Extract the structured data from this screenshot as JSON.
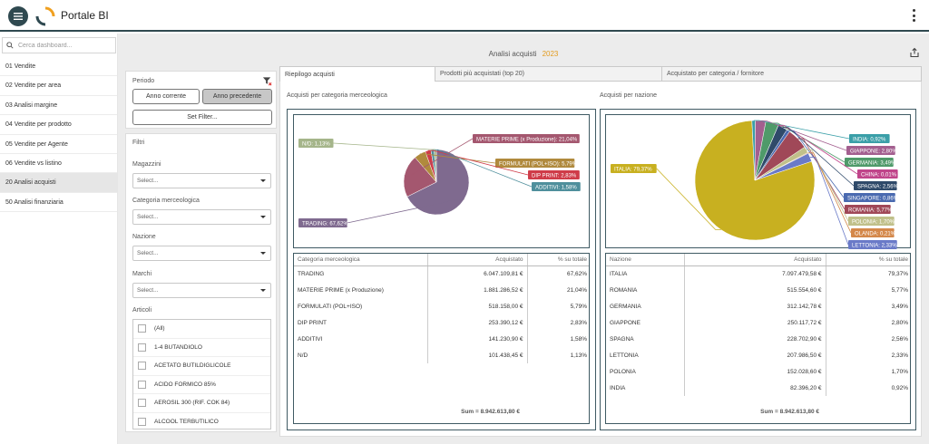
{
  "app": {
    "title": "Portale BI"
  },
  "search": {
    "placeholder": "Cerca dashboard..."
  },
  "sidebar": {
    "items": [
      {
        "label": "01 Vendite"
      },
      {
        "label": "02 Vendite per area"
      },
      {
        "label": "03 Analisi margine"
      },
      {
        "label": "04 Vendite per prodotto"
      },
      {
        "label": "05 Vendite per Agente"
      },
      {
        "label": "06 Vendite vs listino"
      },
      {
        "label": "20 Analisi acquisti",
        "active": true
      },
      {
        "label": "50 Analisi finanziaria"
      }
    ]
  },
  "page": {
    "title": "Analisi acquisti",
    "year": "2023"
  },
  "filters": {
    "period_label": "Periodo",
    "current_year_btn": "Anno corrente",
    "prev_year_btn": "Anno precedente",
    "set_filter_btn": "Set Filter...",
    "filtri_label": "Filtri",
    "magazzini_label": "Magazzini",
    "categoria_label": "Categoria merceologica",
    "nazione_label": "Nazione",
    "marchi_label": "Marchi",
    "articoli_label": "Articoli",
    "select_placeholder": "Select...",
    "articoli": [
      "(All)",
      "1-4 BUTANDIOLO",
      "ACETATO BUTILDIGLICOLE",
      "ACIDO FORMICO 85%",
      "AEROSIL 300 (RIF. COK 84)",
      "ALCOOL TERBUTILICO"
    ]
  },
  "tabs": [
    {
      "label": "Riepilogo acquisti",
      "active": true
    },
    {
      "label": "Prodotti più acquistati (top 20)"
    },
    {
      "label": "Acquistato per categoria / fornitore"
    }
  ],
  "left_section": {
    "title": "Acquisti per categoria merceologica",
    "table": {
      "headers": [
        "Categoria merceologica",
        "Acquistato",
        "% su totale"
      ],
      "rows": [
        [
          "TRADING",
          "6.047.109,81 €",
          "67,62%"
        ],
        [
          "MATERIE PRIME (x Produzione)",
          "1.881.286,52 €",
          "21,04%"
        ],
        [
          "FORMULATI (POL+ISO)",
          "518.158,00 €",
          "5,79%"
        ],
        [
          "DIP PRINT",
          "253.390,12 €",
          "2,83%"
        ],
        [
          "ADDITIVI",
          "141.230,90 €",
          "1,58%"
        ],
        [
          "N/D",
          "101.438,45 €",
          "1,13%"
        ]
      ],
      "sum": "Sum = 8.942.613,80 €"
    }
  },
  "right_section": {
    "title": "Acquisti per nazione",
    "table": {
      "headers": [
        "Nazione",
        "Acquistato",
        "% su totale"
      ],
      "rows": [
        [
          "ITALIA",
          "7.097.479,58 €",
          "79,37%"
        ],
        [
          "ROMANIA",
          "515.554,60 €",
          "5,77%"
        ],
        [
          "GERMANIA",
          "312.142,78 €",
          "3,49%"
        ],
        [
          "GIAPPONE",
          "250.117,72 €",
          "2,80%"
        ],
        [
          "SPAGNA",
          "228.702,90 €",
          "2,56%"
        ],
        [
          "LETTONIA",
          "207.986,50 €",
          "2,33%"
        ],
        [
          "POLONIA",
          "152.028,60 €",
          "1,70%"
        ],
        [
          "INDIA",
          "82.396,20 €",
          "0,92%"
        ]
      ],
      "sum": "Sum = 8.942.613,80 €"
    }
  },
  "chart_data": [
    {
      "type": "pie",
      "title": "Acquisti per categoria merceologica",
      "series": [
        {
          "name": "TRADING",
          "value": 67.62,
          "label": "TRADING: 67,62%",
          "color": "#7f6a8f"
        },
        {
          "name": "MATERIE PRIME (x Produzione)",
          "value": 21.04,
          "label": "MATERIE PRIME (x Produzione): 21,04%",
          "color": "#a4576f"
        },
        {
          "name": "FORMULATI (POL+ISO)",
          "value": 5.79,
          "label": "FORMULATI (POL+ISO): 5,79%",
          "color": "#b08a3d"
        },
        {
          "name": "DIP PRINT",
          "value": 2.83,
          "label": "DIP PRINT: 2,83%",
          "color": "#cf3c49"
        },
        {
          "name": "ADDITIVI",
          "value": 1.58,
          "label": "ADDITIVI: 1,58%",
          "color": "#4f8f9c"
        },
        {
          "name": "N/D",
          "value": 1.13,
          "label": "N/D: 1,13%",
          "color": "#a5b58a"
        }
      ]
    },
    {
      "type": "pie",
      "title": "Acquisti per nazione",
      "series": [
        {
          "name": "ITALIA",
          "value": 79.37,
          "label": "ITALIA: 79,37%",
          "color": "#c8b020"
        },
        {
          "name": "INDIA",
          "value": 0.92,
          "label": "INDIA: 0,92%",
          "color": "#3a9fa8"
        },
        {
          "name": "GIAPPONE",
          "value": 2.8,
          "label": "GIAPPONE: 2,80%",
          "color": "#a35f8f"
        },
        {
          "name": "GERMANIA",
          "value": 3.49,
          "label": "GERMANIA: 3,49%",
          "color": "#4f9a6a"
        },
        {
          "name": "CHINA",
          "value": 0.01,
          "label": "CHINA: 0,01%",
          "color": "#c0448a"
        },
        {
          "name": "SPAGNA",
          "value": 2.56,
          "label": "SPAGNA: 2,56%",
          "color": "#2f4a6a"
        },
        {
          "name": "SINGAPORE",
          "value": 0.86,
          "label": "SINGAPORE: 0,86%",
          "color": "#4a6ab0"
        },
        {
          "name": "ROMANIA",
          "value": 5.77,
          "label": "ROMANIA: 5,77%",
          "color": "#a04858"
        },
        {
          "name": "POLONIA",
          "value": 1.7,
          "label": "POLONIA: 1,70%",
          "color": "#c0c08a"
        },
        {
          "name": "OLANDA",
          "value": 0.21,
          "label": "OLANDA: 0,21%",
          "color": "#d4884a"
        },
        {
          "name": "LETTONIA",
          "value": 2.33,
          "label": "LETTONIA: 2,33%",
          "color": "#6a7ac8"
        }
      ]
    }
  ]
}
